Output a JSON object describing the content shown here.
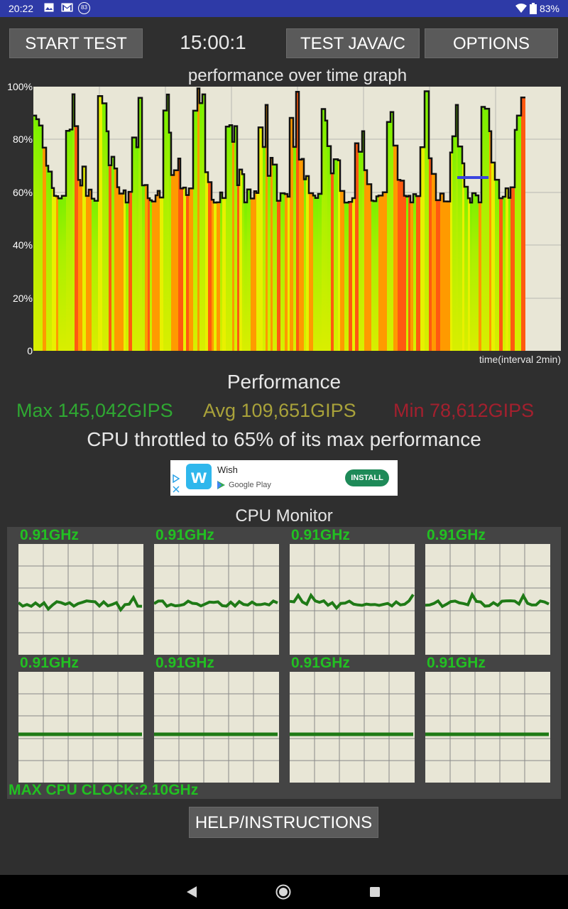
{
  "status_bar": {
    "time": "20:22",
    "notification_badge": "83",
    "battery": "83%",
    "icons": [
      "image-icon",
      "gmail-icon",
      "count-badge-icon",
      "wifi-icon",
      "battery-icon"
    ]
  },
  "toolbar": {
    "start_label": "START TEST",
    "timer": "15:00:1",
    "java_label": "TEST JAVA/C",
    "options_label": "OPTIONS"
  },
  "graph": {
    "title": "performance over time graph",
    "y_ticks": [
      "100%",
      "80%",
      "60%",
      "40%",
      "20%",
      "0"
    ],
    "x_label": "time(interval 2min)"
  },
  "performance": {
    "title": "Performance",
    "max": "Max 145,042GIPS",
    "avg": "Avg 109,651GIPS",
    "min": "Min 78,612GIPS",
    "throttle": "CPU throttled to 65% of its max performance"
  },
  "ad": {
    "app_name": "Wish",
    "store": "Google Play",
    "install_label": "INSTALL"
  },
  "cpu_monitor": {
    "title": "CPU Monitor",
    "cores": [
      "0.91GHz",
      "0.91GHz",
      "0.91GHz",
      "0.91GHz",
      "0.91GHz",
      "0.91GHz",
      "0.91GHz",
      "0.91GHz"
    ],
    "max_clock": "MAX CPU CLOCK:2.10GHz"
  },
  "help_label": "HELP/INSTRUCTIONS",
  "colors": {
    "status_bar": "#2e3aa7",
    "max": "#2fa832",
    "avg": "#a9a23a",
    "min": "#a3202e",
    "cpu_line": "#1f7a16",
    "core_label": "#22c022"
  }
}
